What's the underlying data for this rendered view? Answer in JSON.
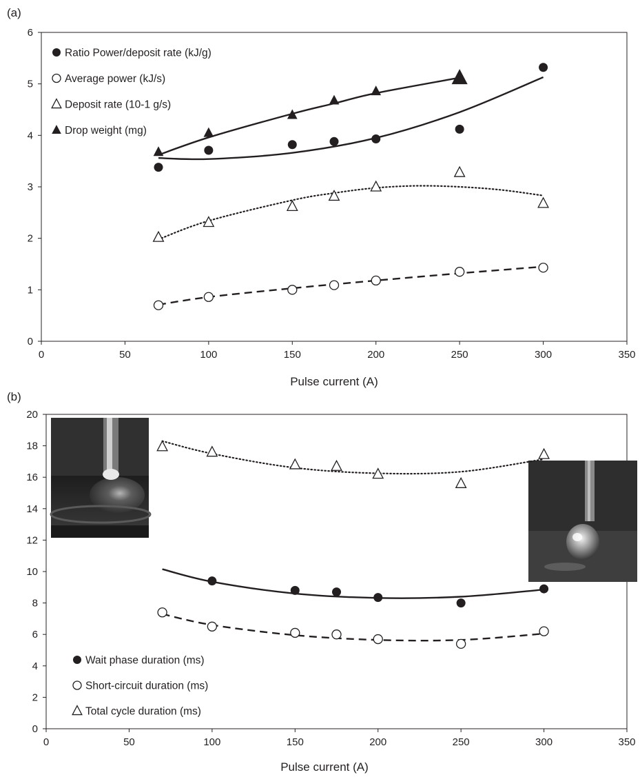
{
  "chart_data": [
    {
      "panel_label": "(a)",
      "type": "scatter",
      "xlabel": "Pulse current (A)",
      "ylabel": "",
      "xlim": [
        0,
        350
      ],
      "ylim": [
        0,
        6
      ],
      "xticks": [
        0,
        50,
        100,
        150,
        200,
        250,
        300,
        350
      ],
      "yticks": [
        0,
        1,
        2,
        3,
        4,
        5,
        6
      ],
      "grid": false,
      "legend_position": "top-left",
      "series": [
        {
          "name": "Ratio Power/deposit rate (kJ/g)",
          "marker": "filled-circle",
          "trend": "solid",
          "x": [
            70,
            100,
            150,
            175,
            200,
            250,
            300
          ],
          "y": [
            3.38,
            3.71,
            3.82,
            3.88,
            3.93,
            4.12,
            5.32
          ],
          "trend_x": [
            70,
            100,
            150,
            200,
            250,
            300
          ],
          "trend_y": [
            3.56,
            3.54,
            3.66,
            3.95,
            4.45,
            5.13
          ]
        },
        {
          "name": "Average power (kJ/s)",
          "marker": "open-circle",
          "trend": "dashed",
          "x": [
            70,
            100,
            150,
            175,
            200,
            250,
            300
          ],
          "y": [
            0.7,
            0.86,
            1.0,
            1.09,
            1.18,
            1.35,
            1.43
          ],
          "trend_x": [
            70,
            100,
            150,
            200,
            250,
            300
          ],
          "trend_y": [
            0.71,
            0.86,
            1.03,
            1.18,
            1.32,
            1.45
          ]
        },
        {
          "name": "Deposit rate (10-1 g/s)",
          "marker": "open-triangle",
          "trend": "dotted",
          "x": [
            70,
            100,
            150,
            175,
            200,
            250,
            300
          ],
          "y": [
            2.02,
            2.31,
            2.62,
            2.82,
            3.0,
            3.28,
            2.68
          ],
          "trend_x": [
            70,
            100,
            150,
            175,
            200,
            225,
            250,
            275,
            300
          ],
          "trend_y": [
            1.98,
            2.34,
            2.74,
            2.88,
            2.98,
            3.02,
            3.0,
            2.94,
            2.83
          ]
        },
        {
          "name": "Drop weight (mg)",
          "marker": "filled-triangle",
          "trend": "solid",
          "x": [
            70,
            100,
            150,
            175,
            200,
            250
          ],
          "y": [
            3.68,
            4.05,
            4.4,
            4.68,
            4.86,
            5.12
          ],
          "trend_x": [
            70,
            100,
            150,
            175,
            200,
            250
          ],
          "trend_y": [
            3.62,
            3.96,
            4.42,
            4.62,
            4.82,
            5.12
          ]
        }
      ]
    },
    {
      "panel_label": "(b)",
      "type": "scatter",
      "xlabel": "Pulse current (A)",
      "ylabel": "",
      "xlim": [
        0,
        350
      ],
      "ylim": [
        0,
        20
      ],
      "xticks": [
        0,
        50,
        100,
        150,
        200,
        250,
        300,
        350
      ],
      "yticks": [
        0,
        2,
        4,
        6,
        8,
        10,
        12,
        14,
        16,
        18,
        20
      ],
      "grid": false,
      "legend_position": "bottom-left",
      "series": [
        {
          "name": "Wait phase duration (ms)",
          "marker": "filled-circle",
          "trend": "solid",
          "x": [
            100,
            150,
            175,
            200,
            250,
            300
          ],
          "y": [
            9.4,
            8.8,
            8.7,
            8.35,
            8.0,
            8.9
          ],
          "trend_x": [
            70,
            100,
            150,
            200,
            250,
            300
          ],
          "trend_y": [
            10.15,
            9.35,
            8.6,
            8.32,
            8.4,
            8.85
          ]
        },
        {
          "name": "Short-circuit duration (ms)",
          "marker": "open-circle",
          "trend": "dashed",
          "x": [
            70,
            100,
            150,
            175,
            200,
            250,
            300
          ],
          "y": [
            7.4,
            6.5,
            6.1,
            6.0,
            5.7,
            5.4,
            6.2
          ],
          "trend_x": [
            70,
            100,
            150,
            200,
            250,
            300
          ],
          "trend_y": [
            7.3,
            6.6,
            5.95,
            5.65,
            5.65,
            6.05
          ]
        },
        {
          "name": "Total cycle duration (ms)",
          "marker": "open-triangle",
          "trend": "dotted",
          "x": [
            70,
            100,
            150,
            175,
            200,
            250,
            300
          ],
          "y": [
            17.95,
            17.6,
            16.8,
            16.7,
            16.2,
            15.6,
            17.45
          ],
          "trend_x": [
            70,
            100,
            150,
            200,
            250,
            300
          ],
          "trend_y": [
            18.3,
            17.5,
            16.6,
            16.25,
            16.35,
            17.15
          ]
        }
      ]
    }
  ]
}
